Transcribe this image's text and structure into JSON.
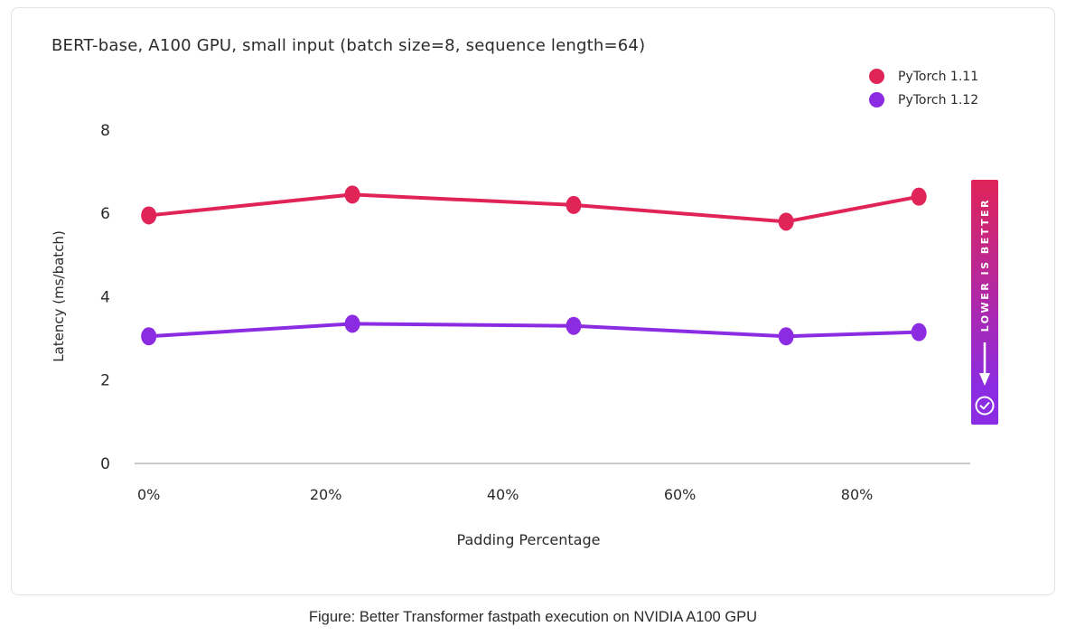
{
  "title": "BERT-base, A100 GPU, small input (batch size=8, sequence length=64)",
  "legend": {
    "items": [
      {
        "label": "PyTorch 1.11",
        "color": "#e02458"
      },
      {
        "label": "PyTorch 1.12",
        "color": "#8b2ce2"
      }
    ]
  },
  "badge": {
    "label": "LOWER IS BETTER",
    "arrow_icon": "down-arrow",
    "check_icon": "circled-check",
    "gradient_top": "#e02458",
    "gradient_bottom": "#8b2ce2"
  },
  "caption": "Figure: Better Transformer fastpath execution on NVIDIA A100 GPU",
  "chart_data": {
    "type": "line",
    "title": "BERT-base, A100 GPU, small input (batch size=8, sequence length=64)",
    "xlabel": "Padding Percentage",
    "ylabel": "Latency (ms/batch)",
    "x": [
      0,
      23,
      48,
      72,
      87
    ],
    "series": [
      {
        "name": "PyTorch 1.11",
        "color": "#e02458",
        "values": [
          5.95,
          6.45,
          6.2,
          5.8,
          6.4
        ]
      },
      {
        "name": "PyTorch 1.12",
        "color": "#8b2ce2",
        "values": [
          3.05,
          3.35,
          3.3,
          3.05,
          3.15
        ]
      }
    ],
    "xticks": {
      "values": [
        0,
        20,
        40,
        60,
        80
      ],
      "labels": [
        "0%",
        "20%",
        "40%",
        "60%",
        "80%"
      ]
    },
    "yticks": [
      0,
      2,
      4,
      6,
      8
    ],
    "xlim": [
      -1.6,
      92.8
    ],
    "ylim": [
      0,
      8.3
    ],
    "grid": false,
    "legend_position": "top-right",
    "annotation": "LOWER IS BETTER"
  }
}
